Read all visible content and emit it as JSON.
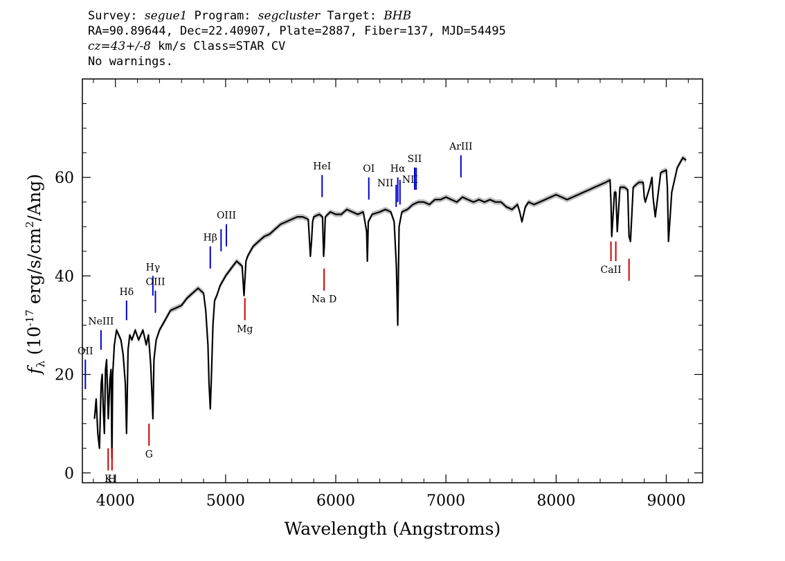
{
  "header": {
    "survey_label": "Survey:",
    "survey": "segue1",
    "program_label": "Program:",
    "program": "segcluster",
    "target_label": "Target:",
    "target": "BHB",
    "line2": "RA=90.89644, Dec=22.40907, Plate=2887, Fiber=137, MJD=54495",
    "cz": "cz=43+/-8",
    "cz_rest": " km/s Class=STAR CV",
    "warnings": "No warnings."
  },
  "chart_data": {
    "type": "line",
    "xlabel": "Wavelength (Angstroms)",
    "ylabel_prefix": "f",
    "ylabel_sub": "λ",
    "ylabel_mid": " (10",
    "ylabel_exp": "-17",
    "ylabel_units": " erg/s/cm",
    "ylabel_exp2": "2",
    "ylabel_end": "/Ang)",
    "xlim": [
      3700,
      9330
    ],
    "ylim": [
      -2,
      80
    ],
    "xticks": [
      4000,
      5000,
      6000,
      7000,
      8000,
      9000
    ],
    "yticks": [
      0,
      20,
      40,
      60
    ],
    "series": [
      {
        "color": "#000000",
        "error_band_color": "#c0c0c0",
        "x": [
          3810,
          3825,
          3840,
          3855,
          3870,
          3880,
          3890,
          3900,
          3910,
          3920,
          3935,
          3950,
          3960,
          3968,
          3975,
          3990,
          4010,
          4030,
          4050,
          4070,
          4090,
          4101,
          4115,
          4130,
          4150,
          4180,
          4210,
          4250,
          4280,
          4300,
          4320,
          4335,
          4340,
          4350,
          4370,
          4400,
          4450,
          4500,
          4550,
          4600,
          4650,
          4700,
          4750,
          4800,
          4820,
          4840,
          4850,
          4861,
          4872,
          4885,
          4900,
          4920,
          4950,
          5000,
          5050,
          5100,
          5150,
          5167,
          5175,
          5185,
          5200,
          5250,
          5300,
          5350,
          5400,
          5450,
          5500,
          5550,
          5600,
          5650,
          5700,
          5750,
          5770,
          5780,
          5790,
          5800,
          5850,
          5880,
          5890,
          5896,
          5905,
          5950,
          6000,
          6050,
          6100,
          6150,
          6200,
          6250,
          6280,
          6287,
          6295,
          6330,
          6400,
          6450,
          6500,
          6530,
          6550,
          6563,
          6575,
          6600,
          6650,
          6700,
          6750,
          6800,
          6850,
          6900,
          6950,
          7000,
          7050,
          7100,
          7150,
          7200,
          7250,
          7300,
          7350,
          7400,
          7450,
          7500,
          7550,
          7600,
          7650,
          7670,
          7690,
          7720,
          7750,
          7800,
          7850,
          7900,
          7950,
          8000,
          8050,
          8100,
          8150,
          8200,
          8250,
          8300,
          8350,
          8400,
          8450,
          8490,
          8498,
          8505,
          8530,
          8542,
          8555,
          8580,
          8620,
          8650,
          8662,
          8675,
          8700,
          8750,
          8790,
          8800,
          8810,
          8850,
          8870,
          8880,
          8900,
          8950,
          9000,
          9010,
          9020,
          9050,
          9100,
          9150,
          9180
        ],
        "values": [
          11,
          15,
          8,
          5,
          18,
          20,
          13,
          8,
          21,
          23,
          11,
          19,
          21,
          3,
          20,
          26,
          29,
          28,
          27,
          24,
          18,
          8,
          25,
          28,
          27,
          29,
          27,
          29,
          26,
          28,
          22,
          14,
          11,
          23,
          27,
          29,
          31,
          33,
          33.5,
          34,
          35.5,
          36.5,
          37.5,
          36.5,
          33,
          26,
          18,
          13,
          20,
          30,
          35,
          36,
          38,
          40,
          41.5,
          43,
          42,
          36,
          39,
          43,
          44,
          46,
          47,
          48,
          48.5,
          49.5,
          50.5,
          51,
          51.5,
          52,
          52,
          51.5,
          44,
          47,
          51,
          52,
          52.5,
          52,
          44,
          46,
          52,
          53,
          52.5,
          52.5,
          53.5,
          53,
          52.5,
          53,
          49,
          43,
          51,
          52.5,
          53,
          53.5,
          53,
          51,
          42,
          30,
          50,
          53,
          53.5,
          54.5,
          55,
          55,
          54.5,
          55.5,
          55.5,
          56,
          55.5,
          55,
          56,
          55.5,
          55,
          55.5,
          55,
          55.5,
          55,
          55,
          54,
          53.5,
          54.5,
          53,
          51,
          54,
          55,
          54.5,
          55,
          55.5,
          56,
          56.5,
          56,
          55.5,
          56,
          56.5,
          57,
          57.5,
          58,
          58.5,
          59,
          59.5,
          55,
          48,
          57,
          57,
          49,
          58,
          58,
          57.5,
          48,
          47,
          58,
          59,
          59,
          56,
          55,
          58,
          60,
          56,
          52,
          61,
          61.5,
          58,
          47,
          57,
          62,
          64,
          63.5
        ]
      }
    ],
    "annotations": [
      {
        "label": "OII",
        "wave": 3727,
        "y1": 17,
        "y2": 23,
        "color": "#0000cc",
        "pos": "above"
      },
      {
        "label": "NeIII",
        "wave": 3869,
        "y1": 25,
        "y2": 29,
        "color": "#0000cc",
        "pos": "above"
      },
      {
        "label": "Hδ",
        "wave": 4101,
        "y1": 31,
        "y2": 35,
        "color": "#0000cc",
        "pos": "above"
      },
      {
        "label": "Hγ",
        "wave": 4340,
        "y1": 36,
        "y2": 40,
        "color": "#0000cc",
        "pos": "above"
      },
      {
        "label": "OIII",
        "wave": 4363,
        "y1": 32.5,
        "y2": 37,
        "color": "#0000cc",
        "pos": "above"
      },
      {
        "label": "Hβ",
        "wave": 4861,
        "y1": 41.5,
        "y2": 46,
        "color": "#0000cc",
        "pos": "above"
      },
      {
        "label": "OIII",
        "wave": 4959,
        "y1": 45,
        "y2": 49.5,
        "color": "#0000cc",
        "pos": "none"
      },
      {
        "label": "OIII",
        "wave": 5007,
        "y1": 46,
        "y2": 50.5,
        "color": "#0000cc",
        "pos": "above"
      },
      {
        "label": "HeI",
        "wave": 5876,
        "y1": 56,
        "y2": 60.5,
        "color": "#0000cc",
        "pos": "above"
      },
      {
        "label": "OI",
        "wave": 6300,
        "y1": 55.5,
        "y2": 60,
        "color": "#0000cc",
        "pos": "above"
      },
      {
        "label": "NII",
        "wave": 6548,
        "y1": 54,
        "y2": 58.5,
        "color": "#0000cc",
        "pos": "left"
      },
      {
        "label": "Hα",
        "wave": 6563,
        "y1": 55,
        "y2": 60,
        "color": "#0000cc",
        "pos": "above"
      },
      {
        "label": "NII",
        "wave": 6583,
        "y1": 54.5,
        "y2": 59.5,
        "color": "#0000cc",
        "pos": "right"
      },
      {
        "label": "SII",
        "wave": 6716,
        "y1": 57.5,
        "y2": 62,
        "color": "#0000cc",
        "pos": "above"
      },
      {
        "label": "SII",
        "wave": 6730,
        "y1": 57.5,
        "y2": 62,
        "color": "#0000cc",
        "pos": "none"
      },
      {
        "label": "ArIII",
        "wave": 7136,
        "y1": 60,
        "y2": 64.5,
        "color": "#0000cc",
        "pos": "above"
      },
      {
        "label": "K",
        "wave": 3934,
        "y1": 0.5,
        "y2": 5,
        "color": "#cc0000",
        "pos": "below"
      },
      {
        "label": "H",
        "wave": 3969,
        "y1": 0.5,
        "y2": 5,
        "color": "#cc0000",
        "pos": "below"
      },
      {
        "label": "G",
        "wave": 4305,
        "y1": 5.5,
        "y2": 10,
        "color": "#cc0000",
        "pos": "below"
      },
      {
        "label": "Mg",
        "wave": 5175,
        "y1": 31,
        "y2": 35.5,
        "color": "#cc0000",
        "pos": "below"
      },
      {
        "label": "Na D",
        "wave": 5894,
        "y1": 37,
        "y2": 41.5,
        "color": "#cc0000",
        "pos": "below"
      },
      {
        "label": "CaII",
        "wave": 8498,
        "y1": 43,
        "y2": 47,
        "color": "#cc0000",
        "pos": "below"
      },
      {
        "label": "",
        "wave": 8542,
        "y1": 43,
        "y2": 47,
        "color": "#cc0000",
        "pos": "none"
      },
      {
        "label": "",
        "wave": 8662,
        "y1": 39,
        "y2": 43.5,
        "color": "#cc0000",
        "pos": "none"
      }
    ]
  }
}
